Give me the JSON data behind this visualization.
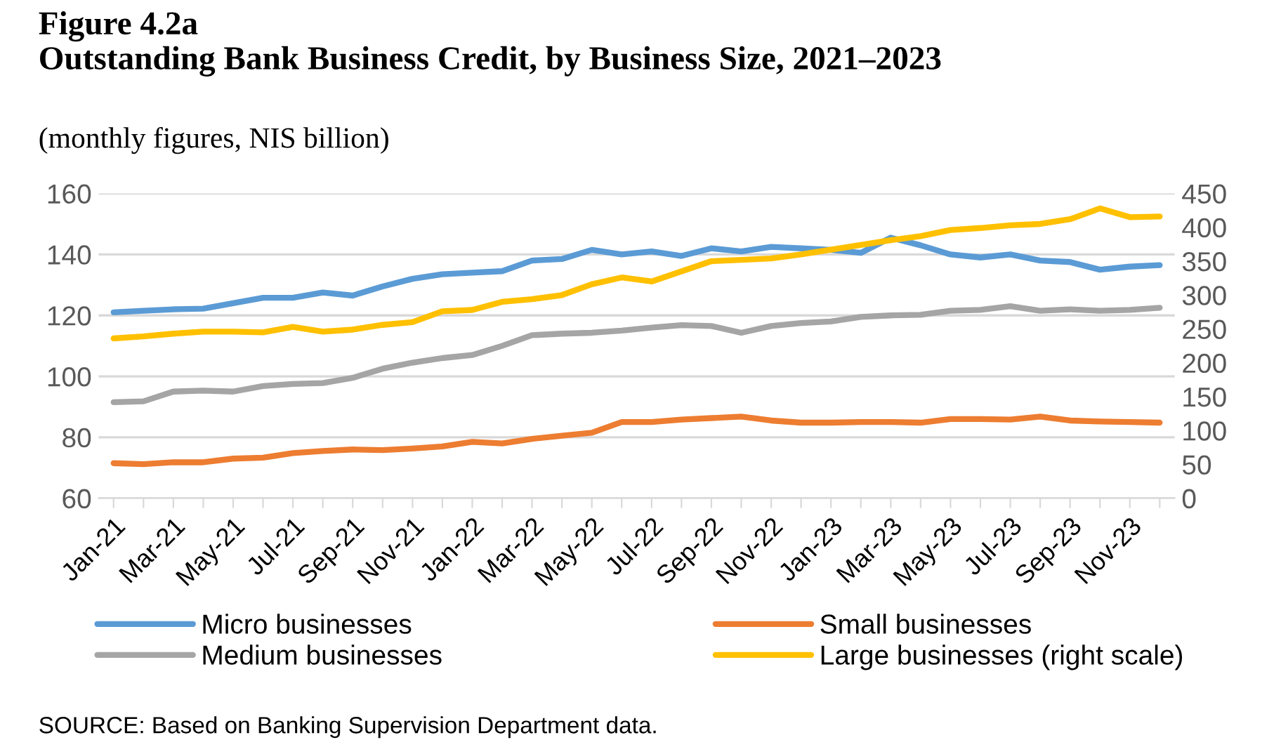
{
  "chart_data": {
    "type": "line",
    "title": "Figure 4.2a\nOutstanding Bank Business Credit, by Business Size, 2021–2023",
    "subtitle": "(monthly figures, NIS billion)",
    "categories": [
      "Jan-21",
      null,
      "Mar-21",
      null,
      "May-21",
      null,
      "Jul-21",
      null,
      "Sep-21",
      null,
      "Nov-21",
      null,
      "Jan-22",
      null,
      "Mar-22",
      null,
      "May-22",
      null,
      "Jul-22",
      null,
      "Sep-22",
      null,
      "Nov-22",
      null,
      "Jan-23",
      null,
      "Mar-23",
      null,
      "May-23",
      null,
      "Jul-23",
      null,
      "Sep-23",
      null,
      "Nov-23",
      null
    ],
    "series": [
      {
        "name": "Micro businesses",
        "color": "#5b9bd5",
        "values": [
          121,
          121.5,
          122,
          122.2,
          124,
          125.8,
          125.8,
          127.5,
          126.5,
          129.5,
          132,
          133.5,
          134,
          134.5,
          138,
          138.5,
          141.5,
          140,
          141,
          139.5,
          142,
          141,
          142.5,
          142,
          141.5,
          140.5,
          145.5,
          143,
          140,
          139,
          140,
          138,
          137.5,
          135,
          136,
          136.5
        ]
      },
      {
        "name": "Small businesses",
        "color": "#ed7d31",
        "values": [
          71.5,
          71.2,
          71.8,
          71.8,
          73,
          73.3,
          74.8,
          75.5,
          76,
          75.8,
          76.3,
          77,
          78.5,
          78,
          79.5,
          80.5,
          81.5,
          85,
          85,
          85.8,
          86.3,
          86.8,
          85.5,
          84.8,
          84.8,
          85,
          85,
          84.8,
          86,
          86,
          85.8,
          86.8,
          85.5,
          85.2,
          85,
          84.8
        ]
      },
      {
        "name": "Medium businesses",
        "color": "#a5a5a5",
        "values": [
          91.5,
          91.8,
          95,
          95.3,
          95,
          96.8,
          97.5,
          97.8,
          99.5,
          102.5,
          104.5,
          106,
          107,
          110,
          113.5,
          114,
          114.3,
          115,
          116,
          116.8,
          116.5,
          114.3,
          116.5,
          117.5,
          118,
          119.5,
          120,
          120.2,
          121.5,
          121.8,
          123,
          121.5,
          122,
          121.5,
          121.8,
          122.5
        ]
      },
      {
        "name": "Large businesses (right scale)",
        "color": "#ffc000",
        "axis": "y2",
        "values": [
          236,
          239,
          243,
          246,
          246,
          245,
          253,
          246,
          249,
          256,
          260,
          276,
          278,
          290,
          294,
          300,
          316,
          326,
          320,
          335,
          350,
          352,
          354,
          360,
          367,
          374,
          381,
          387,
          396,
          399,
          403,
          405,
          412,
          428,
          415,
          416
        ]
      }
    ],
    "ylim": [
      60,
      160
    ],
    "yticks": [
      60,
      80,
      100,
      120,
      140,
      160
    ],
    "y2lim": [
      0,
      450
    ],
    "y2ticks": [
      0,
      50,
      100,
      150,
      200,
      250,
      300,
      350,
      400,
      450
    ],
    "grid": "y",
    "legend": "bottom",
    "marker": "none",
    "line_style": "solid",
    "annotations": [
      "SOURCE: Based on Banking Supervision Department data."
    ]
  }
}
